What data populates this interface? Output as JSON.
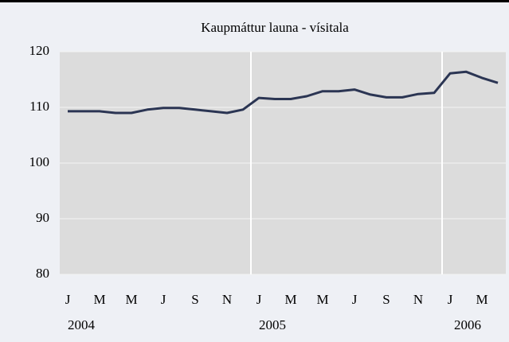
{
  "chart_data": {
    "type": "line",
    "title": "Kaupmáttur launa - vísitala",
    "categories": [
      "J",
      null,
      "M",
      null,
      "M",
      null,
      "J",
      null,
      "S",
      null,
      "N",
      null,
      "J",
      null,
      "M",
      null,
      "M",
      null,
      "J",
      null,
      "S",
      null,
      "N",
      null,
      "J",
      null,
      "M",
      null
    ],
    "years": [
      "2004",
      "2005",
      "2006"
    ],
    "series": [
      {
        "name": "Kaupmáttur launa",
        "color": "#2b3553",
        "values": [
          109.3,
          109.3,
          109.3,
          109.0,
          109.0,
          109.6,
          109.9,
          109.9,
          109.6,
          109.3,
          109.0,
          109.6,
          111.7,
          111.5,
          111.5,
          112.0,
          112.9,
          112.9,
          113.2,
          112.3,
          111.8,
          111.8,
          112.4,
          112.6,
          116.1,
          116.4,
          115.3,
          114.4
        ]
      }
    ],
    "ylim": [
      80,
      120
    ],
    "yticks": [
      80,
      90,
      100,
      110,
      120
    ],
    "grid": true
  }
}
